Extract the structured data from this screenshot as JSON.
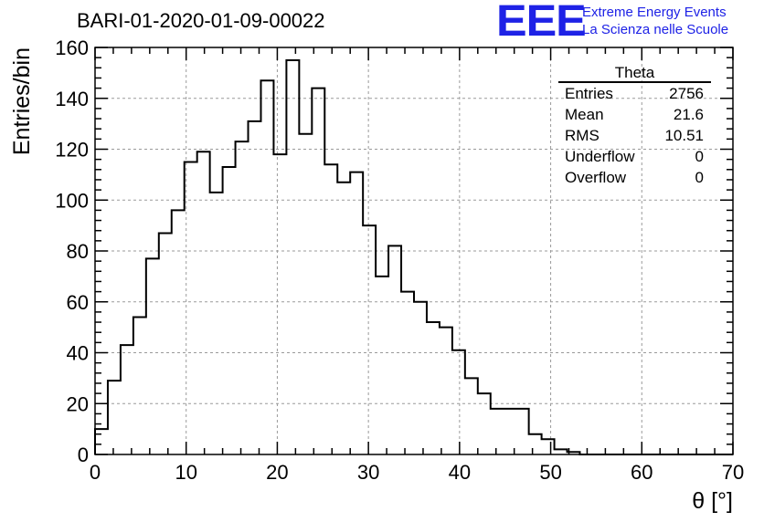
{
  "title": "BARI-01-2020-01-09-00022",
  "logo": {
    "mark": "EEE",
    "line1": "Extreme Energy Events",
    "line2": "La Scienza nelle Scuole",
    "color": "#1e22e6"
  },
  "stats": {
    "title": "Theta",
    "rows": [
      {
        "label": "Entries",
        "value": "2756"
      },
      {
        "label": "Mean",
        "value": "21.6"
      },
      {
        "label": "RMS",
        "value": "10.51"
      },
      {
        "label": "Underflow",
        "value": "0"
      },
      {
        "label": "Overflow",
        "value": "0"
      }
    ]
  },
  "chart_data": {
    "type": "histogram",
    "xlabel": "θ [°]",
    "ylabel": "Entries/bin",
    "xlim": [
      0,
      70
    ],
    "ylim": [
      0,
      160
    ],
    "xticks": [
      0,
      10,
      20,
      30,
      40,
      50,
      60,
      70
    ],
    "yticks": [
      0,
      20,
      40,
      60,
      80,
      100,
      120,
      140,
      160
    ],
    "grid": true,
    "bin_width": 1.4,
    "bin_start": 0,
    "values": [
      10,
      29,
      43,
      54,
      77,
      87,
      96,
      115,
      119,
      103,
      113,
      123,
      131,
      147,
      118,
      155,
      126,
      144,
      114,
      107,
      111,
      90,
      70,
      82,
      64,
      60,
      52,
      50,
      41,
      30,
      24,
      18,
      18,
      18,
      8,
      6,
      2,
      1,
      0,
      0,
      0,
      0,
      0,
      0,
      0,
      0,
      0,
      0,
      0,
      0
    ]
  }
}
